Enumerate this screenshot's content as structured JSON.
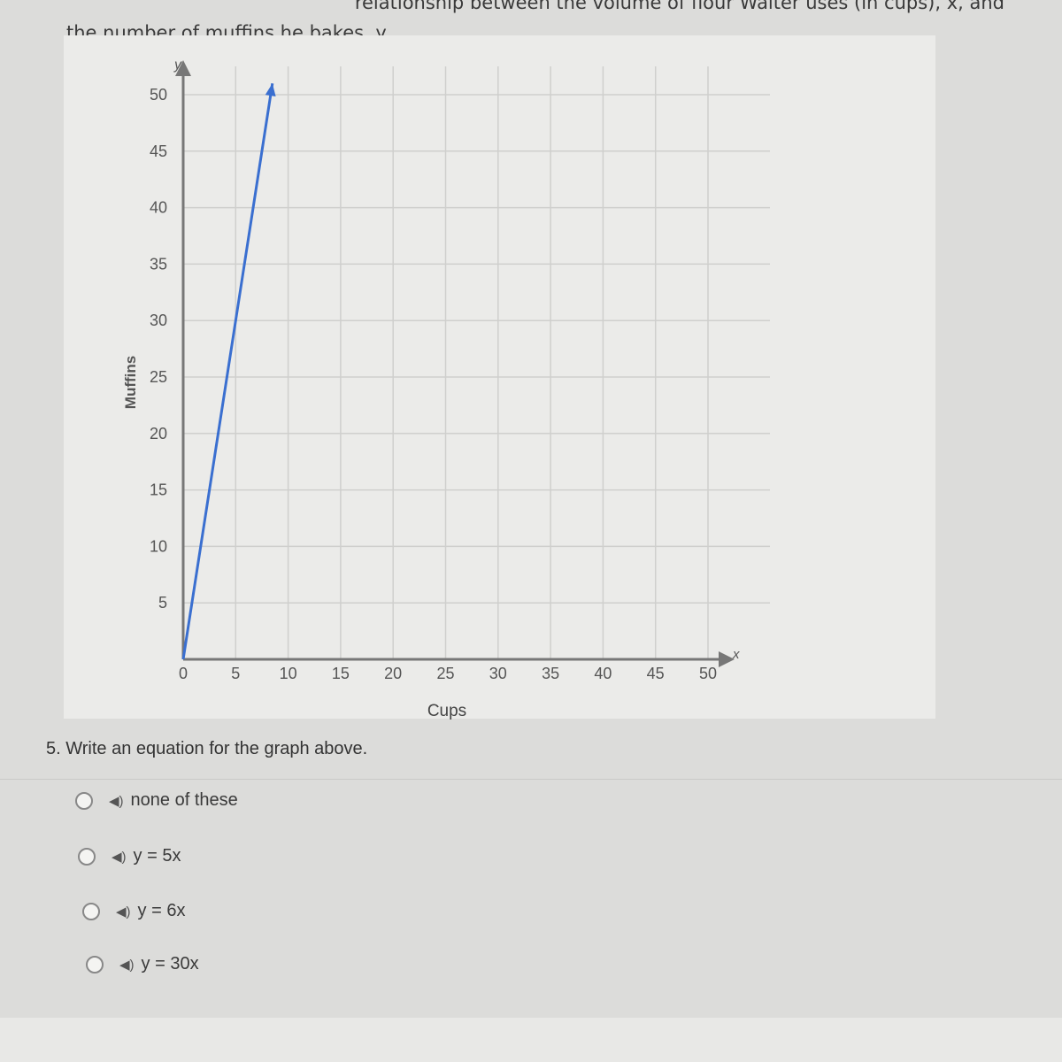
{
  "prompt": {
    "line1": "relationship between the volume of flour Walter uses (in cups), x, and",
    "line2": "the number of muffins he bakes, y."
  },
  "chart_data": {
    "type": "line",
    "xlabel": "Cups",
    "ylabel": "Muffins",
    "x_axis_symbol": "x",
    "y_axis_symbol": "y",
    "xlim": [
      0,
      50
    ],
    "ylim": [
      0,
      50
    ],
    "grid": true,
    "x_ticks": [
      "0",
      "5",
      "10",
      "15",
      "20",
      "25",
      "30",
      "35",
      "40",
      "45",
      "50"
    ],
    "y_ticks": [
      "5",
      "10",
      "15",
      "20",
      "25",
      "30",
      "35",
      "40",
      "45",
      "50"
    ],
    "series": [
      {
        "x": [
          0,
          5,
          8.5
        ],
        "y": [
          0,
          30,
          51
        ],
        "color": "#3a6fd0",
        "arrow_end": true
      }
    ]
  },
  "question": {
    "text": "5. Write an equation for the graph above.",
    "options": [
      {
        "label": "none of these",
        "selected": false
      },
      {
        "label": "y = 5x",
        "selected": false
      },
      {
        "label": "y = 6x",
        "selected": false
      },
      {
        "label": "y = 30x",
        "selected": false
      }
    ],
    "speaker_icon": "speaker-icon"
  }
}
